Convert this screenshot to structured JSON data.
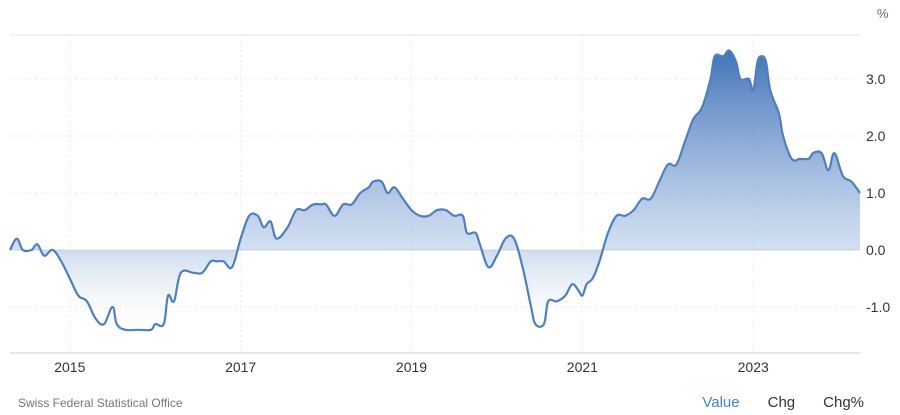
{
  "chart_data": {
    "type": "area",
    "unit": "%",
    "x_ticks": [
      "2015",
      "2017",
      "2019",
      "2021",
      "2023"
    ],
    "y_ticks": [
      "3.0",
      "2.0",
      "1.0",
      "0.0",
      "-1.0"
    ],
    "ylim": [
      -1.8,
      3.8
    ],
    "xlim": [
      2014.3,
      2024.25
    ],
    "grid": true,
    "baseline": 0,
    "colors": {
      "line": "#4f7fbf",
      "fill_top": "#3a6db5",
      "fill_bottom": "#ffffff"
    },
    "series": [
      {
        "values": [
          [
            2014.3,
            0.0
          ],
          [
            2014.38,
            0.2
          ],
          [
            2014.45,
            0.0
          ],
          [
            2014.55,
            0.0
          ],
          [
            2014.62,
            0.1
          ],
          [
            2014.7,
            -0.1
          ],
          [
            2014.8,
            0.0
          ],
          [
            2014.9,
            -0.2
          ],
          [
            2015.0,
            -0.5
          ],
          [
            2015.1,
            -0.8
          ],
          [
            2015.2,
            -0.9
          ],
          [
            2015.3,
            -1.2
          ],
          [
            2015.4,
            -1.3
          ],
          [
            2015.5,
            -1.0
          ],
          [
            2015.55,
            -1.3
          ],
          [
            2015.65,
            -1.4
          ],
          [
            2015.8,
            -1.4
          ],
          [
            2015.95,
            -1.4
          ],
          [
            2016.0,
            -1.3
          ],
          [
            2016.1,
            -1.3
          ],
          [
            2016.15,
            -0.8
          ],
          [
            2016.22,
            -0.9
          ],
          [
            2016.3,
            -0.4
          ],
          [
            2016.45,
            -0.4
          ],
          [
            2016.55,
            -0.4
          ],
          [
            2016.65,
            -0.2
          ],
          [
            2016.72,
            -0.2
          ],
          [
            2016.8,
            -0.2
          ],
          [
            2016.9,
            -0.3
          ],
          [
            2017.0,
            0.2
          ],
          [
            2017.1,
            0.6
          ],
          [
            2017.2,
            0.6
          ],
          [
            2017.27,
            0.4
          ],
          [
            2017.35,
            0.5
          ],
          [
            2017.42,
            0.2
          ],
          [
            2017.55,
            0.4
          ],
          [
            2017.65,
            0.7
          ],
          [
            2017.75,
            0.7
          ],
          [
            2017.85,
            0.8
          ],
          [
            2017.95,
            0.8
          ],
          [
            2018.0,
            0.8
          ],
          [
            2018.1,
            0.6
          ],
          [
            2018.2,
            0.8
          ],
          [
            2018.3,
            0.8
          ],
          [
            2018.4,
            1.0
          ],
          [
            2018.5,
            1.1
          ],
          [
            2018.55,
            1.2
          ],
          [
            2018.65,
            1.2
          ],
          [
            2018.72,
            1.0
          ],
          [
            2018.8,
            1.1
          ],
          [
            2018.9,
            0.9
          ],
          [
            2019.0,
            0.7
          ],
          [
            2019.1,
            0.6
          ],
          [
            2019.2,
            0.6
          ],
          [
            2019.3,
            0.7
          ],
          [
            2019.4,
            0.7
          ],
          [
            2019.5,
            0.6
          ],
          [
            2019.6,
            0.6
          ],
          [
            2019.65,
            0.3
          ],
          [
            2019.75,
            0.3
          ],
          [
            2019.8,
            0.1
          ],
          [
            2019.9,
            -0.3
          ],
          [
            2020.0,
            -0.1
          ],
          [
            2020.1,
            0.2
          ],
          [
            2020.2,
            0.2
          ],
          [
            2020.3,
            -0.3
          ],
          [
            2020.4,
            -1.0
          ],
          [
            2020.45,
            -1.3
          ],
          [
            2020.55,
            -1.3
          ],
          [
            2020.6,
            -0.9
          ],
          [
            2020.7,
            -0.9
          ],
          [
            2020.8,
            -0.8
          ],
          [
            2020.88,
            -0.6
          ],
          [
            2020.95,
            -0.7
          ],
          [
            2021.0,
            -0.8
          ],
          [
            2021.05,
            -0.6
          ],
          [
            2021.12,
            -0.5
          ],
          [
            2021.2,
            -0.2
          ],
          [
            2021.3,
            0.3
          ],
          [
            2021.4,
            0.6
          ],
          [
            2021.5,
            0.6
          ],
          [
            2021.6,
            0.7
          ],
          [
            2021.7,
            0.9
          ],
          [
            2021.8,
            0.9
          ],
          [
            2021.9,
            1.2
          ],
          [
            2022.0,
            1.5
          ],
          [
            2022.1,
            1.5
          ],
          [
            2022.2,
            1.9
          ],
          [
            2022.3,
            2.3
          ],
          [
            2022.4,
            2.5
          ],
          [
            2022.5,
            3.0
          ],
          [
            2022.55,
            3.4
          ],
          [
            2022.65,
            3.4
          ],
          [
            2022.72,
            3.5
          ],
          [
            2022.8,
            3.3
          ],
          [
            2022.85,
            3.0
          ],
          [
            2022.95,
            3.0
          ],
          [
            2023.0,
            2.8
          ],
          [
            2023.05,
            3.3
          ],
          [
            2023.1,
            3.4
          ],
          [
            2023.15,
            3.3
          ],
          [
            2023.2,
            2.8
          ],
          [
            2023.3,
            2.4
          ],
          [
            2023.35,
            2.0
          ],
          [
            2023.45,
            1.6
          ],
          [
            2023.55,
            1.6
          ],
          [
            2023.65,
            1.6
          ],
          [
            2023.7,
            1.7
          ],
          [
            2023.8,
            1.7
          ],
          [
            2023.88,
            1.4
          ],
          [
            2023.95,
            1.7
          ],
          [
            2024.05,
            1.3
          ],
          [
            2024.15,
            1.2
          ],
          [
            2024.25,
            1.0
          ]
        ]
      }
    ]
  },
  "unit_label": "%",
  "source": "Swiss Federal Statistical Office",
  "tabs": [
    "Value",
    "Chg",
    "Chg%"
  ]
}
